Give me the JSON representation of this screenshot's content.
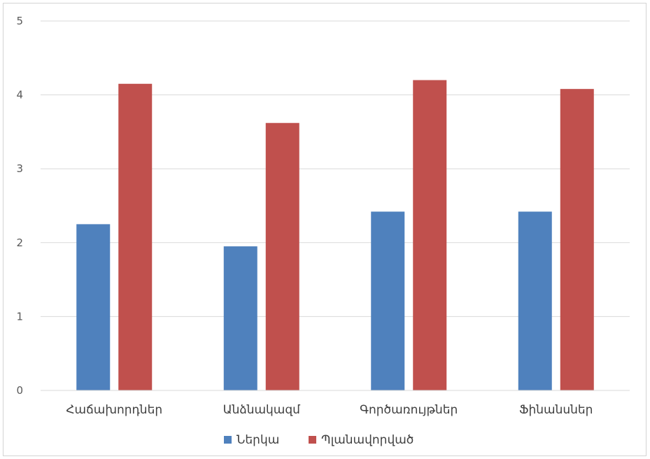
{
  "chart_data": {
    "type": "bar",
    "title": "",
    "xlabel": "",
    "ylabel": "",
    "categories": [
      "Հաճախորդներ",
      "Անձնակազմ",
      "Գործառույթներ",
      "Ֆինանսներ"
    ],
    "series": [
      {
        "name": "Ներկա",
        "values": [
          2.25,
          1.95,
          2.42,
          2.42
        ],
        "color": "#4F81BD"
      },
      {
        "name": "Պլանավորված",
        "values": [
          4.15,
          3.62,
          4.2,
          4.08
        ],
        "color": "#C0504D"
      }
    ],
    "ylim": [
      0,
      5
    ],
    "yticks": [
      "0",
      "1",
      "2",
      "3",
      "4",
      "5"
    ],
    "grid": true,
    "legend": "bottom"
  }
}
